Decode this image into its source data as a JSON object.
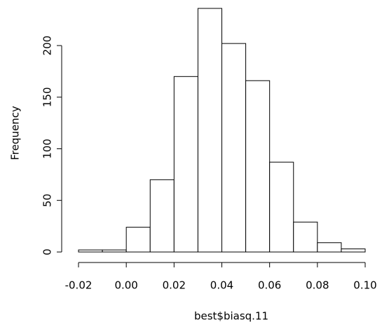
{
  "chart_data": {
    "type": "histogram",
    "x_label": "best$biasq.11",
    "y_label": "Frequency",
    "bins": [
      -0.02,
      -0.01,
      0,
      0.01,
      0.02,
      0.03,
      0.04,
      0.05,
      0.06,
      0.07,
      0.08,
      0.09,
      0.1
    ],
    "values": [
      2,
      2,
      24,
      70,
      170,
      236,
      202,
      166,
      87,
      29,
      9,
      3
    ],
    "color": "#ffffff",
    "edge_color": "#000000",
    "xlim": [
      -0.02,
      0.1
    ],
    "ylim": [
      0,
      236
    ],
    "xticks": [
      {
        "value": -0.02,
        "label": "-0.02"
      },
      {
        "value": 0,
        "label": "0.00"
      },
      {
        "value": 0.02,
        "label": "0.02"
      },
      {
        "value": 0.04,
        "label": "0.04"
      },
      {
        "value": 0.06,
        "label": "0.06"
      },
      {
        "value": 0.08,
        "label": "0.08"
      },
      {
        "value": 0.1,
        "label": "0.10"
      }
    ],
    "yticks": [
      0,
      50,
      100,
      150,
      200
    ]
  }
}
